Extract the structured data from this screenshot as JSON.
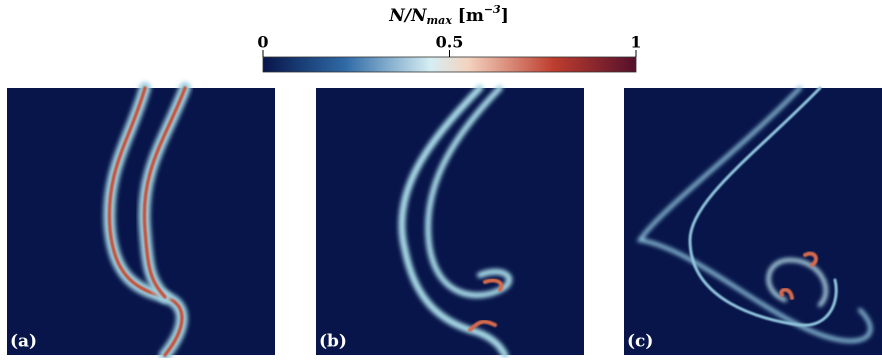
{
  "colorbar": {
    "label_main": "N/N",
    "label_sub": "max",
    "label_unit": " [m",
    "label_sup": "−3",
    "label_end": "]",
    "lim": [
      0,
      1
    ],
    "ticks": [
      0,
      0.5,
      1
    ]
  },
  "panels": [
    {
      "label": "(a)"
    },
    {
      "label": "(b)"
    },
    {
      "label": "(c)"
    }
  ]
}
